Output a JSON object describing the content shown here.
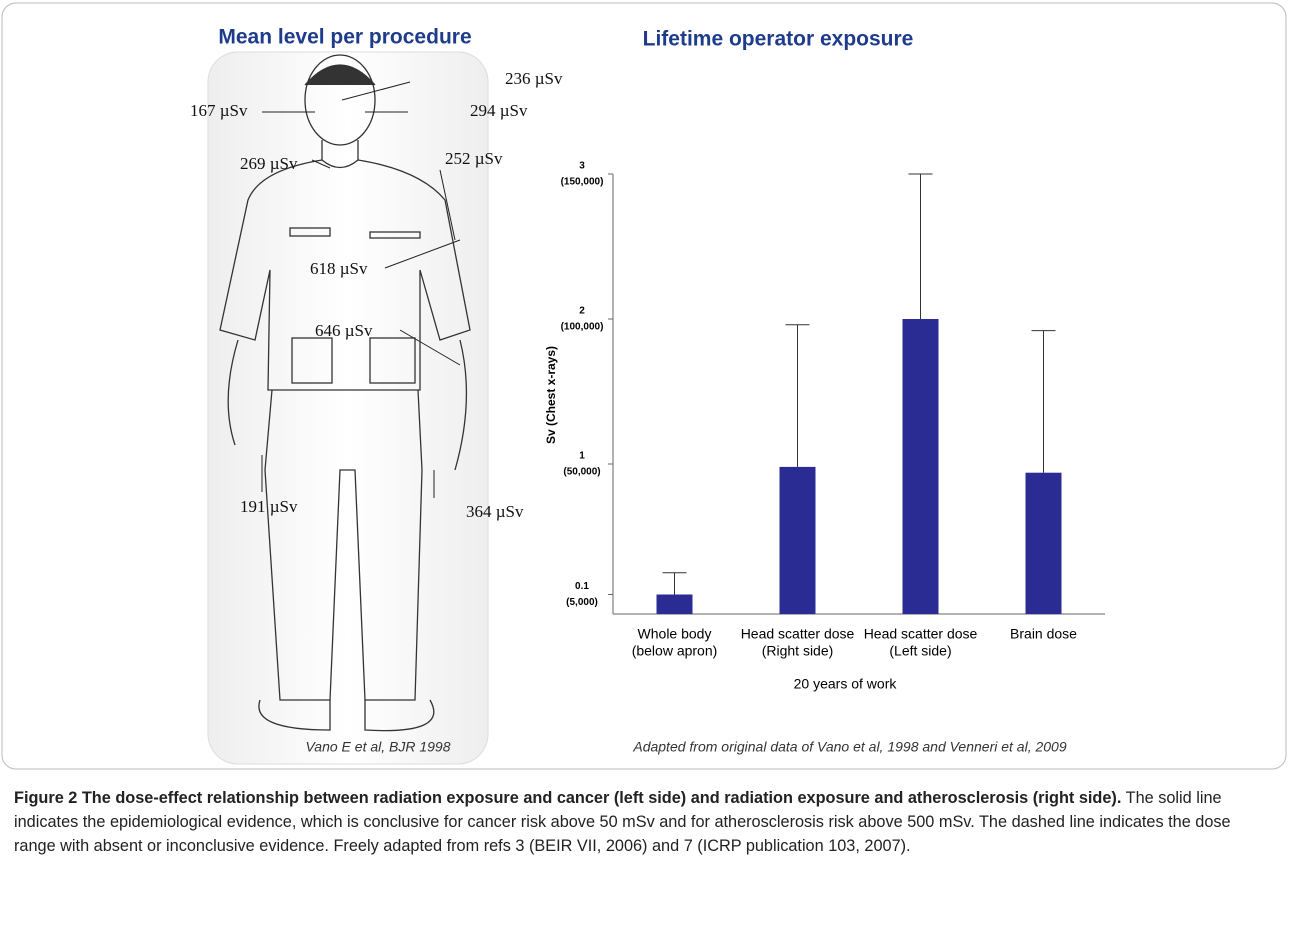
{
  "left_panel": {
    "title": "Mean level per procedure",
    "dose_labels": [
      "236 µSv",
      "167 µSv",
      "294 µSv",
      "269 µSv",
      "252 µSv",
      "618 µSv",
      "646 µSv",
      "191 µSv",
      "364 µSv"
    ],
    "source": "Vano E et al, BJR 1998"
  },
  "chart_data": {
    "type": "bar",
    "title": "Lifetime operator exposure",
    "x_label": "20 years of work",
    "y_label": "Sv (Chest x-rays)",
    "categories": [
      [
        "Whole body",
        "(below apron)"
      ],
      [
        "Head scatter dose",
        "(Right side)"
      ],
      [
        "Head scatter dose",
        "(Left side)"
      ],
      [
        "Brain dose",
        ""
      ]
    ],
    "values": [
      0.1,
      0.98,
      2.0,
      0.94
    ],
    "errors": [
      0.15,
      0.98,
      1.0,
      0.98
    ],
    "color": "#2b2b94",
    "ylim": [
      0,
      3
    ],
    "yticks": [
      {
        "value": 0.1,
        "label": [
          "0.1",
          "(5,000)"
        ]
      },
      {
        "value": 1,
        "label": [
          "1",
          "(50,000)"
        ]
      },
      {
        "value": 2,
        "label": [
          "2",
          "(100,000)"
        ]
      },
      {
        "value": 3,
        "label": [
          "3",
          "(150,000)"
        ]
      }
    ],
    "source": "Adapted from original data of Vano et al, 1998 and Venneri et al, 2009"
  },
  "caption": {
    "bold": "Figure 2 The dose-effect relationship between radiation exposure and cancer (left side) and radiation exposure and atherosclerosis (right side).",
    "text": " The solid line indicates the epidemiological evidence, which is conclusive for cancer risk above 50 mSv and for atherosclerosis risk above 500 mSv. The dashed line indicates the dose range with absent or inconclusive evidence. Freely adapted from refs 3 (BEIR VII, 2006) and 7 (ICRP publication 103, 2007)."
  }
}
